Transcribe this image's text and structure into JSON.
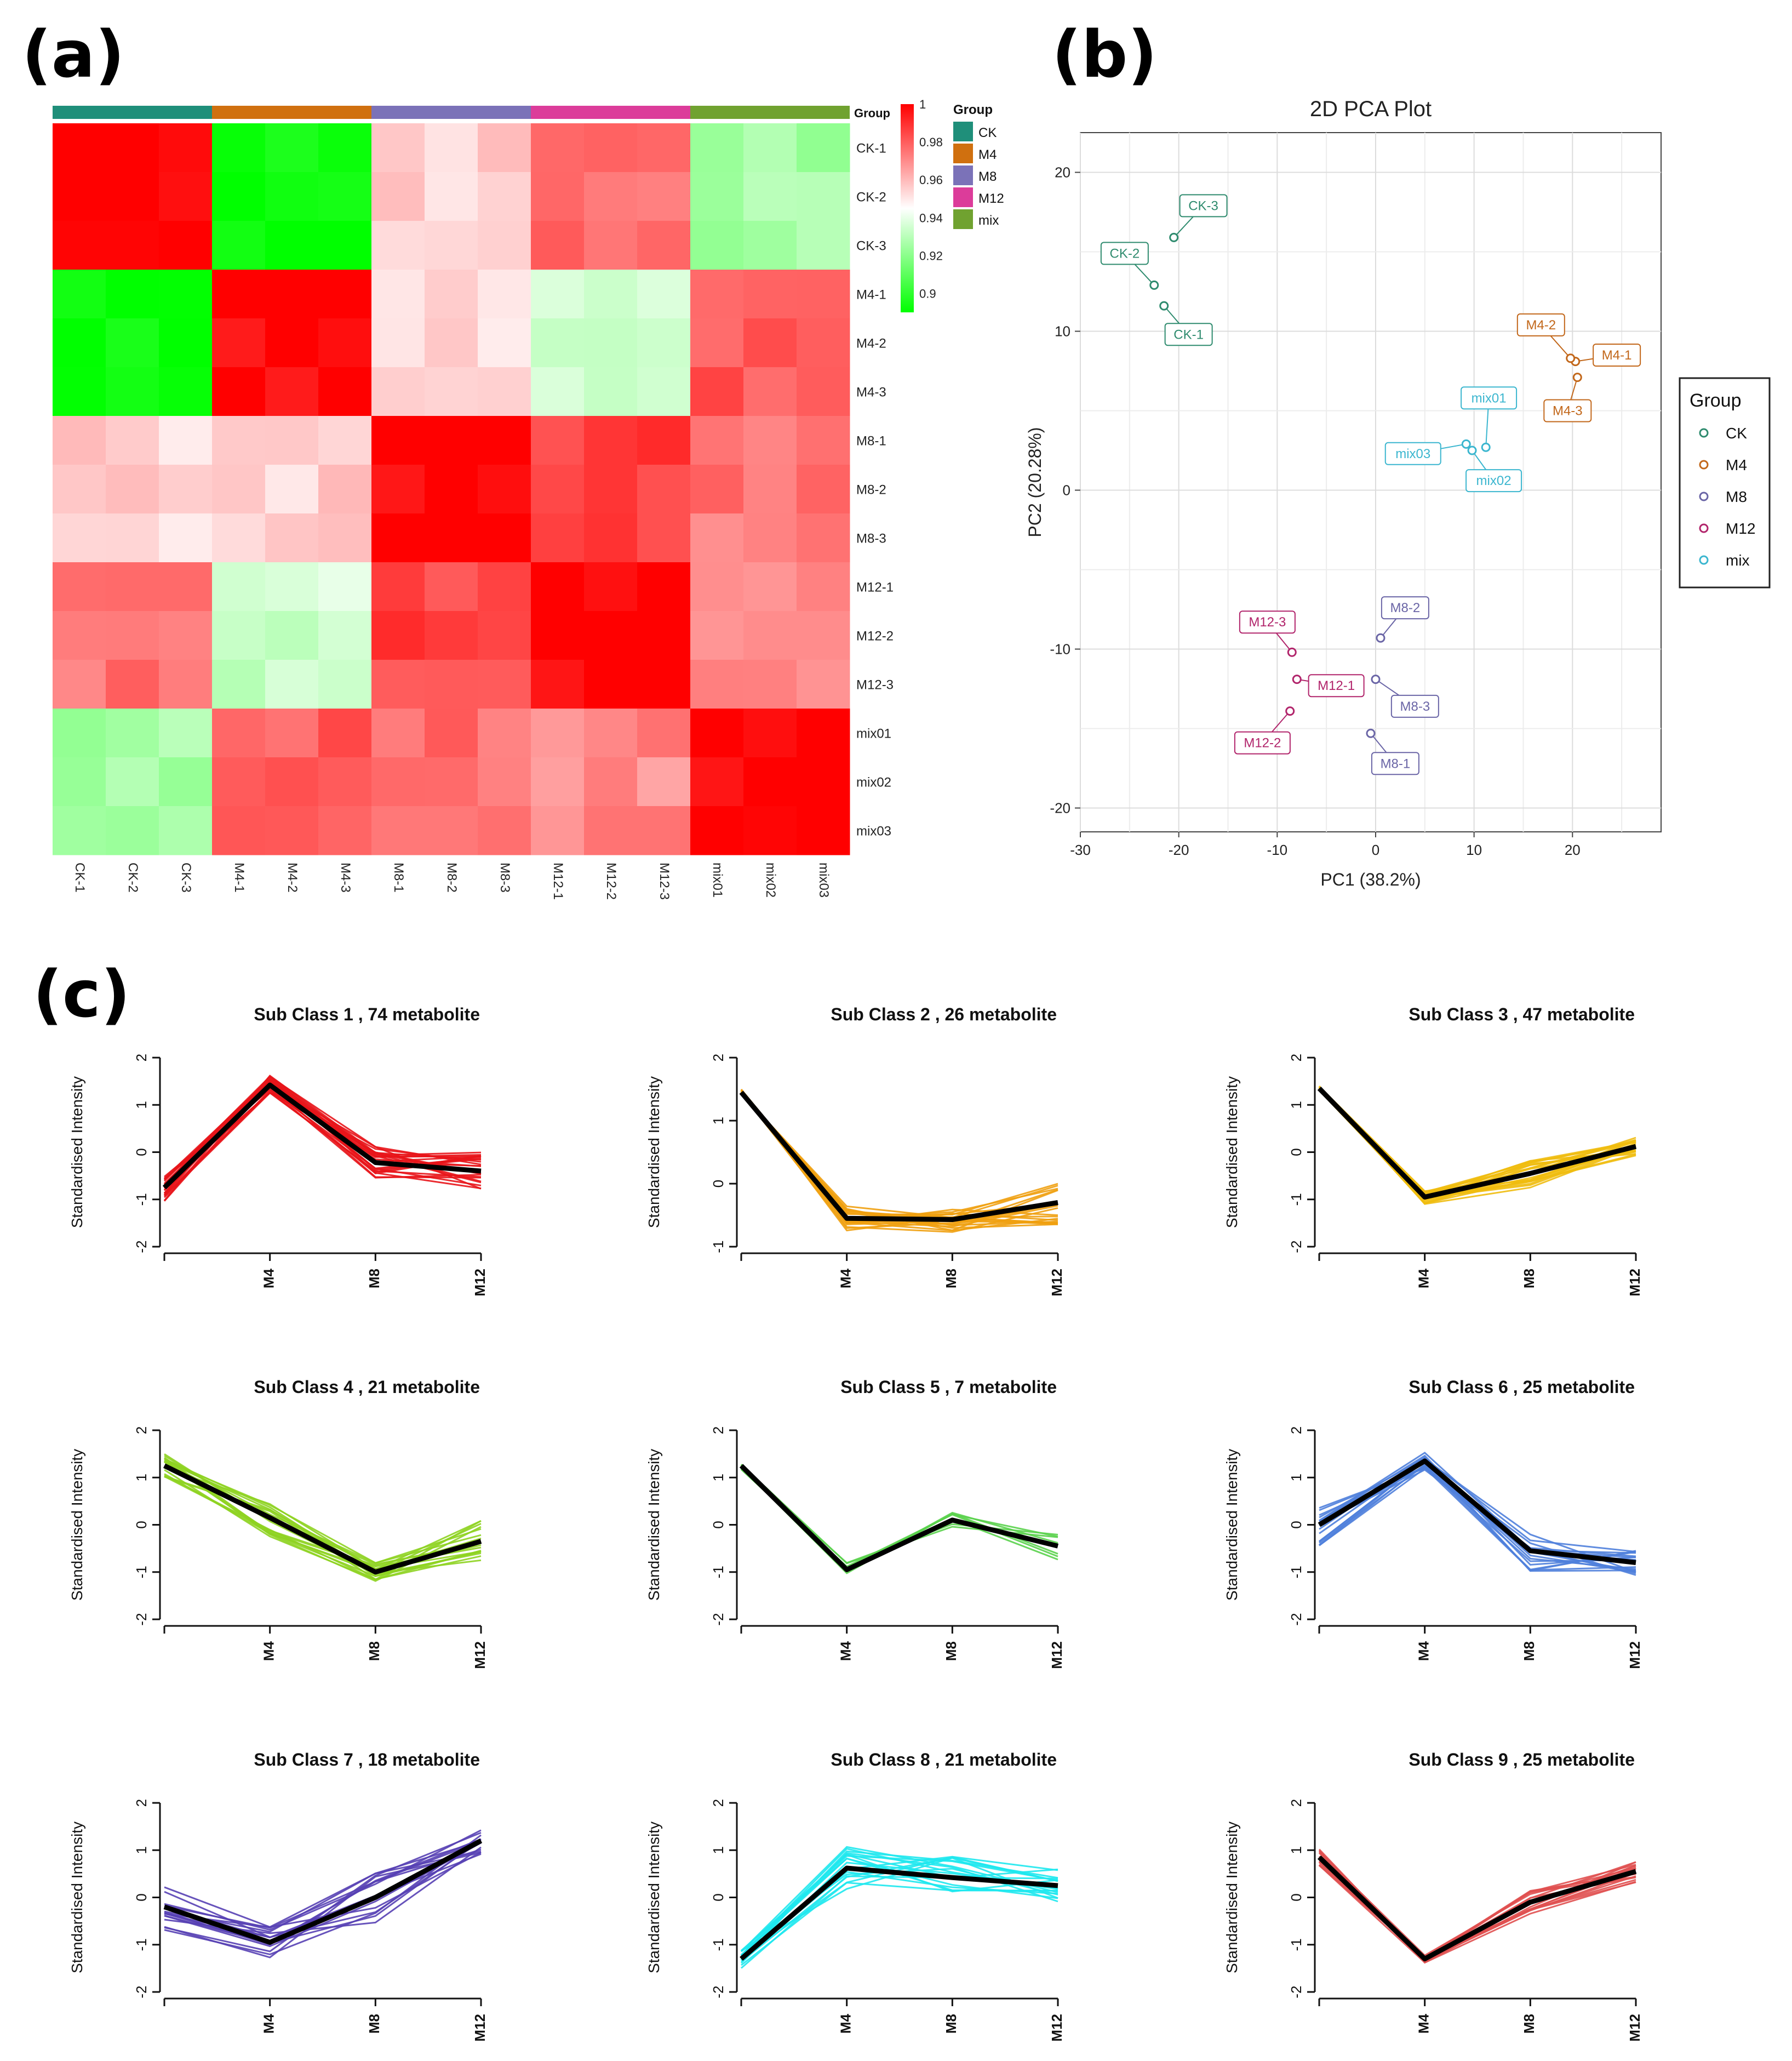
{
  "panels": {
    "a": "(a)",
    "b": "(b)",
    "c": "(c)"
  },
  "heatmap": {
    "samples": [
      "CK-1",
      "CK-2",
      "CK-3",
      "M4-1",
      "M4-2",
      "M4-3",
      "M8-1",
      "M8-2",
      "M8-3",
      "M12-1",
      "M12-2",
      "M12-3",
      "mix01",
      "mix02",
      "mix03"
    ],
    "group_bar_label": "Group",
    "legend_title": "Group",
    "groups": [
      {
        "name": "CK",
        "color": "#1f8f7a"
      },
      {
        "name": "M4",
        "color": "#d0700f"
      },
      {
        "name": "M8",
        "color": "#7b72b8"
      },
      {
        "name": "M12",
        "color": "#dc3c9a"
      },
      {
        "name": "mix",
        "color": "#70a230"
      }
    ],
    "color_scale": {
      "min": 0.89,
      "max": 1,
      "low": "#00ff00",
      "mid": "#ffffff",
      "high": "#ff0000",
      "ticks": [
        "1",
        "0.98",
        "0.96",
        "0.94",
        "0.92",
        "0.9"
      ]
    },
    "block_values": [
      [
        1.0,
        0.89,
        0.955,
        0.975,
        0.925
      ],
      [
        0.89,
        1.0,
        0.955,
        0.935,
        0.98
      ],
      [
        0.955,
        0.955,
        1.0,
        0.985,
        0.975
      ],
      [
        0.975,
        0.935,
        0.985,
        1.0,
        0.97
      ],
      [
        0.925,
        0.98,
        0.975,
        0.97,
        1.0
      ]
    ]
  },
  "pca": {
    "title": "2D PCA Plot",
    "xlabel": "PC1 (38.2%)",
    "ylabel": "PC2 (20.28%)",
    "xlim": [
      -30,
      29
    ],
    "ylim": [
      -21.5,
      22.5
    ],
    "xticks": [
      "-30",
      "-20",
      "-10",
      "0",
      "10",
      "20"
    ],
    "yticks": [
      "20",
      "10",
      "0",
      "-10",
      "-20"
    ],
    "legend_title": "Group",
    "groups": [
      {
        "name": "CK",
        "color": "#2e8b6e"
      },
      {
        "name": "M4",
        "color": "#c2671a"
      },
      {
        "name": "M8",
        "color": "#6a65a6"
      },
      {
        "name": "M12",
        "color": "#b1246b"
      },
      {
        "name": "mix",
        "color": "#3bb6cf"
      }
    ],
    "points": [
      {
        "label": "CK-1",
        "group": "CK",
        "x": -21.5,
        "y": 11.6,
        "lx": -19,
        "ly": 9.8
      },
      {
        "label": "CK-2",
        "group": "CK",
        "x": -22.5,
        "y": 12.9,
        "lx": -25.5,
        "ly": 14.9
      },
      {
        "label": "CK-3",
        "group": "CK",
        "x": -20.5,
        "y": 15.9,
        "lx": -17.5,
        "ly": 17.9
      },
      {
        "label": "M4-1",
        "group": "M4",
        "x": 20.3,
        "y": 8.1,
        "lx": 24.5,
        "ly": 8.5
      },
      {
        "label": "M4-2",
        "group": "M4",
        "x": 19.8,
        "y": 8.3,
        "lx": 16.8,
        "ly": 10.4
      },
      {
        "label": "M4-3",
        "group": "M4",
        "x": 20.5,
        "y": 7.1,
        "lx": 19.5,
        "ly": 5.0
      },
      {
        "label": "M8-1",
        "group": "M8",
        "x": -0.5,
        "y": -15.3,
        "lx": 2.0,
        "ly": -17.2
      },
      {
        "label": "M8-2",
        "group": "M8",
        "x": 0.5,
        "y": -9.3,
        "lx": 3.0,
        "ly": -7.4
      },
      {
        "label": "M8-3",
        "group": "M8",
        "x": 0.0,
        "y": -11.9,
        "lx": 4.0,
        "ly": -13.6
      },
      {
        "label": "M12-1",
        "group": "M12",
        "x": -8.0,
        "y": -11.9,
        "lx": -4.0,
        "ly": -12.3
      },
      {
        "label": "M12-2",
        "group": "M12",
        "x": -8.7,
        "y": -13.9,
        "lx": -11.5,
        "ly": -15.9
      },
      {
        "label": "M12-3",
        "group": "M12",
        "x": -8.5,
        "y": -10.2,
        "lx": -11.0,
        "ly": -8.3
      },
      {
        "label": "mix01",
        "group": "mix",
        "x": 11.2,
        "y": 2.7,
        "lx": 11.5,
        "ly": 5.8
      },
      {
        "label": "mix02",
        "group": "mix",
        "x": 9.8,
        "y": 2.5,
        "lx": 12.0,
        "ly": 0.6
      },
      {
        "label": "mix03",
        "group": "mix",
        "x": 9.2,
        "y": 2.9,
        "lx": 3.8,
        "ly": 2.3
      }
    ]
  },
  "clusters": {
    "ylabel": "Standardised Intensity",
    "xticks": [
      "M4",
      "M8",
      "M12"
    ],
    "yticks": [
      "2",
      "1",
      "0",
      "-1",
      "-2"
    ],
    "items": [
      {
        "title": "Sub Class  1  , 74 metabolite",
        "color": "#e8141a",
        "ylim": [
          -2,
          2
        ],
        "mean": [
          -0.75,
          1.42,
          -0.22,
          -0.4
        ],
        "spread": [
          0.3,
          0.2,
          0.35,
          0.4
        ],
        "n": 24
      },
      {
        "title": "Sub Class  4  , 21 metabolite",
        "color": "#8ed321",
        "ylim": [
          -2,
          2
        ],
        "mean": [
          1.25,
          0.15,
          -1.0,
          -0.35
        ],
        "spread": [
          0.25,
          0.4,
          0.2,
          0.45
        ],
        "n": 18
      },
      {
        "title": "Sub Class  7  , 18 metabolite",
        "color": "#5640b4",
        "ylim": [
          -2,
          2
        ],
        "mean": [
          -0.2,
          -0.95,
          0.0,
          1.2
        ],
        "spread": [
          0.5,
          0.35,
          0.55,
          0.3
        ],
        "n": 16
      },
      {
        "title": "Sub Class  2  , 26 metabolite",
        "color": "#f0a010",
        "ylim": [
          -1,
          2
        ],
        "mean": [
          1.45,
          -0.55,
          -0.57,
          -0.3
        ],
        "spread": [
          0.05,
          0.2,
          0.2,
          0.35
        ],
        "n": 20
      },
      {
        "title": "Sub Class  5  , 7 metabolite",
        "color": "#5ad24c",
        "ylim": [
          -2,
          2
        ],
        "mean": [
          1.25,
          -0.95,
          0.1,
          -0.45
        ],
        "spread": [
          0.1,
          0.2,
          0.2,
          0.3
        ],
        "n": 7
      },
      {
        "title": "Sub Class  8  , 21 metabolite",
        "color": "#1ee8ee",
        "ylim": [
          -2,
          2
        ],
        "mean": [
          -1.3,
          0.62,
          0.42,
          0.25
        ],
        "spread": [
          0.2,
          0.45,
          0.45,
          0.35
        ],
        "n": 18
      },
      {
        "title": "Sub Class  3  , 47 metabolite",
        "color": "#f0bd10",
        "ylim": [
          -2,
          2
        ],
        "mean": [
          1.35,
          -0.95,
          -0.45,
          0.12
        ],
        "spread": [
          0.05,
          0.15,
          0.3,
          0.2
        ],
        "n": 22
      },
      {
        "title": "Sub Class  6  , 25 metabolite",
        "color": "#4f7fdc",
        "ylim": [
          -2,
          2
        ],
        "mean": [
          0.0,
          1.35,
          -0.55,
          -0.8
        ],
        "spread": [
          0.45,
          0.2,
          0.45,
          0.3
        ],
        "n": 18
      },
      {
        "title": "Sub Class  9  , 25 metabolite",
        "color": "#e05050",
        "ylim": [
          -2,
          2
        ],
        "mean": [
          0.85,
          -1.3,
          -0.1,
          0.55
        ],
        "spread": [
          0.2,
          0.08,
          0.25,
          0.25
        ],
        "n": 18
      }
    ]
  }
}
